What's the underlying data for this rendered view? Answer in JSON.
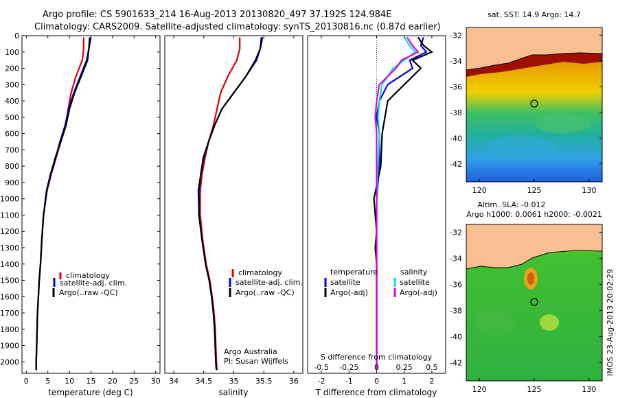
{
  "header": {
    "line1": "Argo profile: CS 5901633_214 16-Aug-2013 20130820_497 37.192S 124.984E",
    "line2": "Climatology: CARS2009. Satellite-adjusted climatology: synTS_20130816.nc (0.87d earlier)"
  },
  "depth_ticks": [
    "0",
    "100",
    "200",
    "300",
    "400",
    "500",
    "600",
    "700",
    "800",
    "900",
    "1000",
    "1100",
    "1200",
    "1300",
    "1400",
    "1500",
    "1600",
    "1700",
    "1800",
    "1900",
    "2000"
  ],
  "colors": {
    "climatology": "#e00000",
    "satellite": "#0000e0",
    "argo": "#000000",
    "sat_salinity": "#00e0e0",
    "argo_adj_salinity": "#e000e0"
  },
  "panels": {
    "temperature": {
      "xlabel": "temperature (deg C)",
      "ticks": [
        "0",
        "5",
        "10",
        "15",
        "20",
        "25",
        "30"
      ],
      "legend": [
        "climatology",
        "satellite-adj. clim.",
        "Argo(..raw -QC)"
      ]
    },
    "salinity": {
      "xlabel": "salinity",
      "ticks": [
        "34",
        "34.5",
        "35",
        "35.5",
        "36"
      ],
      "legend": [
        "climatology",
        "satellite-adj. clim.",
        "Argo(..raw -QC)"
      ],
      "credit1": "Argo Australia",
      "credit2": "PI: Susan Wijffels"
    },
    "difference": {
      "xlabel": "T difference from climatology",
      "top_label": "S difference from climatology",
      "ticks_t": [
        "-2",
        "-1",
        "0",
        "1",
        "2"
      ],
      "ticks_s": [
        "-0.5",
        "-0.25",
        "0",
        "0.25",
        "0.5"
      ],
      "legend_t_title": "temperature",
      "legend_s_title": "salinity",
      "legend_t": [
        "satellite",
        "Argo(-adj)"
      ],
      "legend_s": [
        "satellite",
        "Argo(-adj)"
      ]
    }
  },
  "maps": {
    "sst": {
      "title": "sat. SST: 14.9 Argo: 14.7",
      "xticks": [
        "120",
        "125",
        "130"
      ],
      "yticks": [
        "-32",
        "-34",
        "-36",
        "-38",
        "-40",
        "-42"
      ]
    },
    "sla": {
      "title1": "Altim. SLA: -0.012",
      "title2": "Argo h1000: 0.0061 h2000: -0.0021",
      "xticks": [
        "120",
        "125",
        "130"
      ],
      "yticks": [
        "-32",
        "-34",
        "-36",
        "-38",
        "-40",
        "-42"
      ]
    },
    "float_position": {
      "lon": 124.984,
      "lat": -37.192
    }
  },
  "timestamp": "IMOS 23-Aug-2013 20:02:29",
  "chart_data": [
    {
      "type": "line",
      "title": "",
      "xlabel": "temperature (deg C)",
      "ylabel": "",
      "xlim": [
        -1,
        31
      ],
      "ylim": [
        2070,
        0
      ],
      "series": [
        {
          "name": "climatology",
          "x": [
            13.3,
            13.3,
            13.0,
            11.5,
            10.4,
            9.7,
            9.2,
            8.0,
            6.9,
            5.8,
            4.8,
            4.0,
            3.6,
            3.3,
            3.0,
            2.8,
            2.6,
            2.5,
            2.4,
            2.3,
            2.3
          ],
          "y": [
            10,
            80,
            150,
            250,
            350,
            450,
            550,
            650,
            750,
            850,
            950,
            1100,
            1250,
            1400,
            1500,
            1600,
            1700,
            1800,
            1900,
            2000,
            2050
          ]
        },
        {
          "name": "satellite-adj. clim.",
          "x": [
            15.0,
            14.5,
            14.0,
            12.5,
            11.0,
            9.8,
            9.0,
            7.8,
            6.8,
            5.7,
            4.8,
            4.0,
            3.6,
            3.3,
            3.0,
            2.8,
            2.6,
            2.5,
            2.4,
            2.3,
            2.3
          ],
          "y": [
            10,
            80,
            150,
            250,
            350,
            450,
            550,
            650,
            750,
            850,
            950,
            1100,
            1250,
            1400,
            1500,
            1600,
            1700,
            1800,
            1900,
            2000,
            2050
          ]
        },
        {
          "name": "Argo(..raw -QC)",
          "x": [
            14.7,
            14.5,
            14.2,
            12.7,
            11.2,
            10.0,
            9.2,
            8.0,
            6.7,
            5.6,
            4.7,
            4.0,
            3.6,
            3.3,
            3.0,
            2.8,
            2.6,
            2.5,
            2.4,
            2.3,
            2.3
          ],
          "y": [
            10,
            80,
            150,
            250,
            350,
            450,
            550,
            650,
            750,
            850,
            950,
            1100,
            1250,
            1400,
            1500,
            1600,
            1700,
            1800,
            1900,
            2000,
            2050
          ]
        }
      ]
    },
    {
      "type": "line",
      "title": "",
      "xlabel": "salinity",
      "ylabel": "",
      "xlim": [
        33.85,
        36.15
      ],
      "ylim": [
        2070,
        0
      ],
      "series": [
        {
          "name": "climatology",
          "x": [
            35.1,
            35.1,
            35.05,
            34.9,
            34.78,
            34.72,
            34.66,
            34.58,
            34.52,
            34.47,
            34.44,
            34.44,
            34.48,
            34.54,
            34.6,
            34.64,
            34.67,
            34.69,
            34.7,
            34.71,
            34.72
          ],
          "y": [
            10,
            80,
            150,
            250,
            350,
            450,
            550,
            650,
            750,
            850,
            950,
            1100,
            1250,
            1400,
            1500,
            1600,
            1700,
            1800,
            1900,
            2000,
            2050
          ]
        },
        {
          "name": "satellite-adj. clim.",
          "x": [
            35.48,
            35.44,
            35.38,
            35.2,
            35.0,
            34.8,
            34.68,
            34.58,
            34.5,
            34.45,
            34.42,
            34.42,
            34.47,
            34.53,
            34.59,
            34.63,
            34.66,
            34.68,
            34.69,
            34.7,
            34.71
          ],
          "y": [
            10,
            80,
            150,
            250,
            350,
            450,
            550,
            650,
            750,
            850,
            950,
            1100,
            1250,
            1400,
            1500,
            1600,
            1700,
            1800,
            1900,
            2000,
            2050
          ]
        },
        {
          "name": "Argo(..raw -QC)",
          "x": [
            35.46,
            35.44,
            35.36,
            35.2,
            35.0,
            34.8,
            34.68,
            34.58,
            34.49,
            34.45,
            34.41,
            34.42,
            34.47,
            34.53,
            34.59,
            34.63,
            34.66,
            34.68,
            34.69,
            34.7,
            34.71
          ],
          "y": [
            10,
            80,
            150,
            250,
            350,
            450,
            550,
            650,
            750,
            850,
            950,
            1100,
            1250,
            1400,
            1500,
            1600,
            1700,
            1800,
            1900,
            2000,
            2050
          ]
        }
      ]
    },
    {
      "type": "line",
      "title": "",
      "xlabel": "T difference from climatology",
      "ylabel": "",
      "xlim": [
        -2.5,
        2.5
      ],
      "ylim": [
        2070,
        0
      ],
      "series": [
        {
          "name": "temperature satellite",
          "x": [
            1.7,
            1.6,
            1.8,
            1.2,
            1.3,
            0.4,
            0.1,
            0.0,
            0.1,
            0.1,
            0.0,
            0.0,
            0.0,
            0.0,
            0.0,
            0.0,
            0.0,
            0.0,
            0.0,
            0.0,
            0.0
          ],
          "y": [
            10,
            60,
            100,
            150,
            200,
            300,
            400,
            500,
            600,
            800,
            1000,
            1200,
            1300,
            1400,
            1500,
            1600,
            1700,
            1800,
            1900,
            2000,
            2050
          ]
        },
        {
          "name": "temperature Argo(-adj)",
          "x": [
            1.5,
            1.7,
            2.0,
            1.3,
            1.6,
            1.0,
            0.4,
            0.3,
            0.2,
            0.15,
            -0.1,
            0.0,
            -0.05,
            0.0,
            0.0,
            0.0,
            0.0,
            0.0,
            0.0,
            0.0,
            0.0
          ],
          "y": [
            10,
            60,
            100,
            150,
            200,
            300,
            400,
            500,
            600,
            800,
            1000,
            1200,
            1300,
            1400,
            1500,
            1600,
            1700,
            1800,
            1900,
            2000,
            2050
          ]
        },
        {
          "name": "salinity satellite",
          "x": [
            1.0,
            1.2,
            1.4,
            1.0,
            0.6,
            0.2,
            0.1,
            0.05,
            0.1,
            0.05,
            0.0,
            0.0,
            0.0,
            0.0,
            0.0,
            0.0,
            0.0,
            0.0,
            0.0,
            0.0,
            0.0
          ],
          "y": [
            10,
            60,
            100,
            150,
            200,
            300,
            400,
            500,
            600,
            800,
            1000,
            1200,
            1300,
            1400,
            1500,
            1600,
            1700,
            1800,
            1900,
            2000,
            2050
          ]
        },
        {
          "name": "salinity Argo(-adj)",
          "x": [
            1.1,
            1.3,
            1.5,
            0.9,
            0.7,
            0.1,
            0.0,
            -0.05,
            0.0,
            0.0,
            0.0,
            0.0,
            0.0,
            0.0,
            0.0,
            0.0,
            0.0,
            0.0,
            0.0,
            0.0,
            0.0
          ],
          "y": [
            10,
            60,
            100,
            150,
            200,
            300,
            400,
            500,
            600,
            800,
            1000,
            1200,
            1300,
            1400,
            1500,
            1600,
            1700,
            1800,
            1900,
            2000,
            2050
          ]
        }
      ]
    }
  ]
}
